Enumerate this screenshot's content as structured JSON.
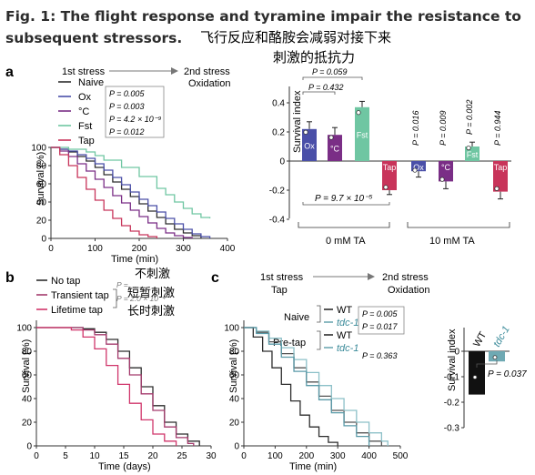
{
  "figure_title": "Fig. 1: The flight response and tyramine impair the resistance to subsequent stressors.",
  "title_cn_line1": "飞行反应和酪胺会减弱对接下来",
  "title_cn_line2": "刺激的抵抗力",
  "colors": {
    "naive": "#2d2d2d",
    "ox": "#4a4fa8",
    "c": "#7a2e86",
    "fst": "#6fc6a2",
    "tap": "#c8345a",
    "grey": "#666666",
    "purple_curve": "#a43a6c",
    "lifetime": "#d0366b"
  },
  "panel_a": {
    "label": "a",
    "stress1": "1st stress",
    "stress2": "2nd stress",
    "stress2b": "Oxidation",
    "legend": [
      {
        "name": "Naive",
        "p": ""
      },
      {
        "name": "Ox",
        "p": "P = 0.005"
      },
      {
        "name": "°C",
        "p": "P = 0.003"
      },
      {
        "name": "Fst",
        "p": "P = 4.2 × 10⁻⁹"
      },
      {
        "name": "Tap",
        "p": "P = 0.012"
      }
    ],
    "xlabel": "Time (min)",
    "ylabel": "Survival (%)",
    "xticks": [
      "0",
      "100",
      "200",
      "300",
      "400"
    ],
    "yticks": [
      "0",
      "20",
      "40",
      "60",
      "80",
      "100"
    ]
  },
  "panel_a_bar": {
    "ylabel": "Survival index",
    "yticks": [
      "0.4",
      "0.2",
      "0",
      "-0.2",
      "-0.4"
    ],
    "group1": "0 mM TA",
    "group2": "10 mM TA",
    "bar_labels": [
      "Ox",
      "°C",
      "Fst",
      "Tap"
    ],
    "p_brackets": [
      "P = 0.059",
      "P = 0.432",
      "P = 9.7 × 10⁻⁵"
    ],
    "p_vertical": [
      "P = 0.016",
      "P = 0.009",
      "P = 0.002",
      "P = 0.944"
    ]
  },
  "panel_b": {
    "label": "b",
    "legend": [
      "No tap",
      "Transient tap",
      "Lifetime tap"
    ],
    "legend_cn": [
      "不刺激",
      "短暂刺激",
      "长时刺激"
    ],
    "p_values": [
      "P = ...",
      "P = 2.0 × 10⁻⁴"
    ],
    "xlabel": "Time (days)",
    "ylabel": "Survival (%)",
    "xticks": [
      "0",
      "5",
      "10",
      "15",
      "20",
      "25",
      "30"
    ],
    "yticks": [
      "0",
      "20",
      "40",
      "60",
      "80",
      "100"
    ]
  },
  "panel_c": {
    "label": "c",
    "stress1": "1st stress",
    "stress1b": "Tap",
    "stress2": "2nd stress",
    "stress2b": "Oxidation",
    "naive": "Naive",
    "pretap": "Pre-tap",
    "wt": "WT",
    "tdc": "tdc-1",
    "p_values": [
      "P = 0.005",
      "P = 0.017",
      "P = 0.363"
    ],
    "xlabel": "Time (min)",
    "ylabel": "Survival (%)",
    "xticks": [
      "0",
      "100",
      "200",
      "300",
      "400",
      "500"
    ],
    "yticks": [
      "0",
      "20",
      "40",
      "60",
      "80",
      "100"
    ],
    "bar": {
      "ylabel": "Survival index",
      "yticks": [
        "0",
        "-0.1",
        "-0.2",
        "-0.3"
      ],
      "labels": [
        "WT",
        "tdc-1"
      ],
      "p": "P = 0.037"
    }
  },
  "chart_data": [
    {
      "type": "line",
      "title": "",
      "xlabel": "Time (min)",
      "ylabel": "Survival (%)",
      "xlim": [
        0,
        400
      ],
      "ylim": [
        0,
        100
      ],
      "series": [
        {
          "name": "Naive",
          "x": [
            0,
            20,
            40,
            60,
            80,
            100,
            120,
            140,
            160,
            180,
            200,
            220,
            240,
            260,
            280,
            300,
            320,
            340
          ],
          "y": [
            100,
            98,
            95,
            90,
            85,
            78,
            70,
            62,
            54,
            46,
            38,
            30,
            23,
            16,
            10,
            6,
            3,
            0
          ]
        },
        {
          "name": "Ox",
          "x": [
            0,
            20,
            40,
            60,
            80,
            100,
            120,
            140,
            160,
            180,
            200,
            220,
            240,
            260,
            280,
            300,
            320,
            340,
            360
          ],
          "y": [
            100,
            98,
            96,
            92,
            88,
            82,
            75,
            67,
            59,
            51,
            43,
            36,
            29,
            22,
            16,
            10,
            5,
            2,
            0
          ]
        },
        {
          "name": "°C",
          "x": [
            0,
            20,
            40,
            60,
            80,
            100,
            120,
            140,
            160,
            180,
            200,
            220,
            240,
            260,
            280,
            300,
            320
          ],
          "y": [
            100,
            96,
            90,
            82,
            74,
            65,
            56,
            47,
            39,
            31,
            24,
            17,
            11,
            6,
            3,
            1,
            0
          ]
        },
        {
          "name": "Fst",
          "x": [
            0,
            40,
            80,
            100,
            120,
            160,
            200,
            240,
            260,
            280,
            300,
            320,
            340,
            360
          ],
          "y": [
            100,
            98,
            95,
            91,
            86,
            78,
            68,
            55,
            48,
            40,
            33,
            27,
            23,
            22
          ]
        },
        {
          "name": "Tap",
          "x": [
            0,
            20,
            40,
            60,
            80,
            100,
            120,
            140,
            160,
            180,
            200,
            220,
            240
          ],
          "y": [
            100,
            92,
            80,
            67,
            54,
            42,
            31,
            22,
            14,
            8,
            4,
            2,
            0
          ]
        }
      ]
    },
    {
      "type": "bar",
      "title": "",
      "ylabel": "Survival index",
      "ylim": [
        -0.4,
        0.5
      ],
      "categories": [
        "Ox",
        "°C",
        "Fst",
        "Tap",
        "Ox",
        "°C",
        "Fst",
        "Tap"
      ],
      "groups": [
        "0 mM TA",
        "0 mM TA",
        "0 mM TA",
        "0 mM TA",
        "10 mM TA",
        "10 mM TA",
        "10 mM TA",
        "10 mM TA"
      ],
      "values": [
        0.22,
        0.18,
        0.37,
        -0.2,
        -0.07,
        -0.14,
        0.1,
        -0.21
      ]
    },
    {
      "type": "line",
      "title": "",
      "xlabel": "Time (days)",
      "ylabel": "Survival (%)",
      "xlim": [
        0,
        30
      ],
      "ylim": [
        0,
        100
      ],
      "series": [
        {
          "name": "No tap",
          "x": [
            0,
            8,
            10,
            12,
            14,
            16,
            18,
            20,
            22,
            24,
            26,
            28
          ],
          "y": [
            100,
            99,
            96,
            90,
            80,
            66,
            50,
            34,
            20,
            10,
            4,
            0
          ]
        },
        {
          "name": "Transient tap",
          "x": [
            0,
            8,
            10,
            12,
            14,
            16,
            18,
            20,
            22,
            24,
            26,
            27
          ],
          "y": [
            100,
            98,
            94,
            86,
            74,
            60,
            44,
            30,
            16,
            7,
            2,
            0
          ]
        },
        {
          "name": "Lifetime tap",
          "x": [
            0,
            6,
            8,
            10,
            12,
            14,
            16,
            18,
            20,
            22,
            24
          ],
          "y": [
            100,
            98,
            92,
            82,
            68,
            52,
            36,
            22,
            10,
            4,
            0
          ]
        }
      ]
    },
    {
      "type": "line",
      "title": "",
      "xlabel": "Time (min)",
      "ylabel": "Survival (%)",
      "xlim": [
        0,
        500
      ],
      "ylim": [
        0,
        100
      ],
      "series": [
        {
          "name": "Naive WT",
          "x": [
            0,
            40,
            80,
            120,
            160,
            200,
            240,
            280,
            320,
            360,
            400,
            440
          ],
          "y": [
            100,
            96,
            88,
            78,
            66,
            54,
            42,
            30,
            20,
            11,
            4,
            0
          ]
        },
        {
          "name": "Naive tdc-1",
          "x": [
            0,
            40,
            80,
            120,
            160,
            200,
            240,
            280,
            320,
            360,
            400,
            440,
            460
          ],
          "y": [
            100,
            97,
            91,
            83,
            73,
            62,
            51,
            40,
            30,
            20,
            11,
            4,
            0
          ]
        },
        {
          "name": "Pre-tap WT",
          "x": [
            0,
            30,
            60,
            90,
            120,
            150,
            180,
            210,
            240,
            270,
            300
          ],
          "y": [
            100,
            92,
            80,
            66,
            52,
            38,
            26,
            16,
            8,
            3,
            0
          ]
        },
        {
          "name": "Pre-tap tdc-1",
          "x": [
            0,
            40,
            80,
            120,
            160,
            200,
            240,
            280,
            320,
            360,
            400
          ],
          "y": [
            100,
            95,
            86,
            75,
            63,
            51,
            39,
            28,
            17,
            8,
            0
          ]
        }
      ]
    },
    {
      "type": "bar",
      "title": "",
      "ylabel": "Survival index",
      "ylim": [
        -0.3,
        0.05
      ],
      "categories": [
        "WT",
        "tdc-1"
      ],
      "values": [
        -0.17,
        -0.04
      ]
    }
  ]
}
